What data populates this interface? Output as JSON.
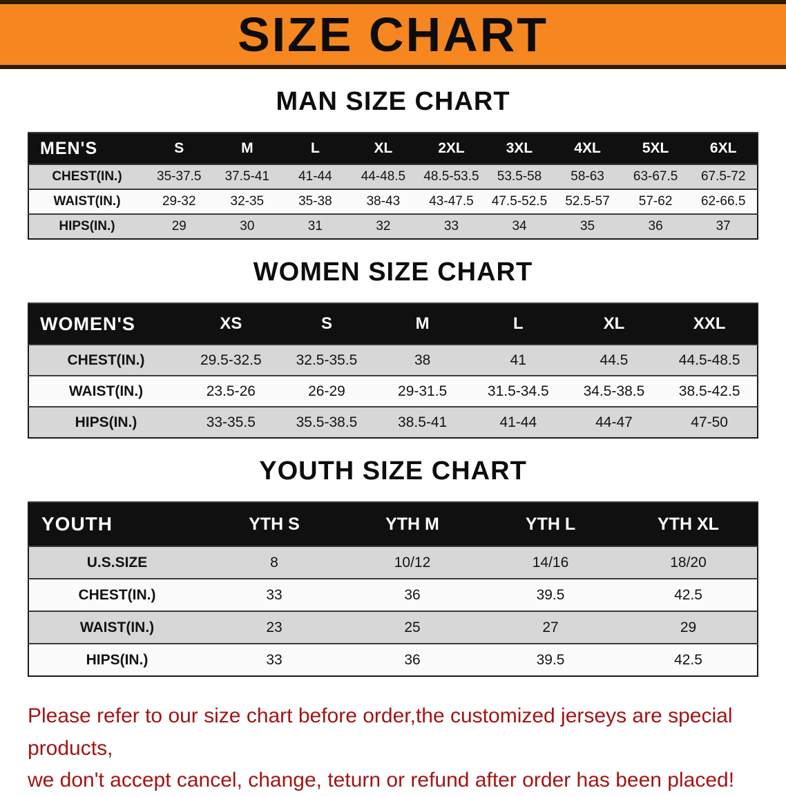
{
  "banner": {
    "title": "SIZE CHART",
    "bg_color": "#f6861f",
    "text_color": "#0c0c0c"
  },
  "sections": [
    {
      "heading": "MAN SIZE CHART",
      "table": {
        "header": [
          "MEN'S",
          "S",
          "M",
          "L",
          "XL",
          "2XL",
          "3XL",
          "4XL",
          "5XL",
          "6XL"
        ],
        "rows": [
          [
            "CHEST(IN.)",
            "35-37.5",
            "37.5-41",
            "41-44",
            "44-48.5",
            "48.5-53.5",
            "53.5-58",
            "58-63",
            "63-67.5",
            "67.5-72"
          ],
          [
            "WAIST(IN.)",
            "29-32",
            "32-35",
            "35-38",
            "38-43",
            "43-47.5",
            "47.5-52.5",
            "52.5-57",
            "57-62",
            "62-66.5"
          ],
          [
            "HIPS(IN.)",
            "29",
            "30",
            "31",
            "32",
            "33",
            "34",
            "35",
            "36",
            "37"
          ]
        ]
      }
    },
    {
      "heading": "WOMEN SIZE CHART",
      "table": {
        "header": [
          "WOMEN'S",
          "XS",
          "S",
          "M",
          "L",
          "XL",
          "XXL"
        ],
        "rows": [
          [
            "CHEST(IN.)",
            "29.5-32.5",
            "32.5-35.5",
            "38",
            "41",
            "44.5",
            "44.5-48.5"
          ],
          [
            "WAIST(IN.)",
            "23.5-26",
            "26-29",
            "29-31.5",
            "31.5-34.5",
            "34.5-38.5",
            "38.5-42.5"
          ],
          [
            "HIPS(IN.)",
            "33-35.5",
            "35.5-38.5",
            "38.5-41",
            "41-44",
            "44-47",
            "47-50"
          ]
        ]
      }
    },
    {
      "heading": "YOUTH SIZE CHART",
      "table": {
        "header": [
          "YOUTH",
          "YTH S",
          "YTH M",
          "YTH L",
          "YTH XL"
        ],
        "rows": [
          [
            "U.S.SIZE",
            "8",
            "10/12",
            "14/16",
            "18/20"
          ],
          [
            "CHEST(IN.)",
            "33",
            "36",
            "39.5",
            "42.5"
          ],
          [
            "WAIST(IN.)",
            "23",
            "25",
            "27",
            "29"
          ],
          [
            "HIPS(IN.)",
            "33",
            "36",
            "39.5",
            "42.5"
          ]
        ]
      }
    }
  ],
  "disclaimer": {
    "line1": "Please refer to our size chart before order,the customized jerseys are special products,",
    "line2": "we don't accept cancel, change, teturn or refund after order has been placed!",
    "color": "#a31414"
  }
}
